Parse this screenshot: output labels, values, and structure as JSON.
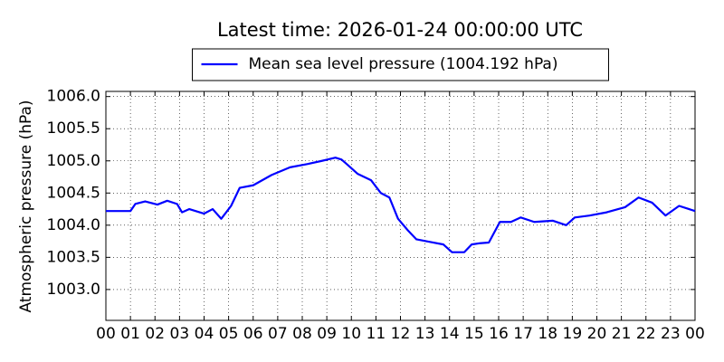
{
  "chart_data": {
    "type": "line",
    "title": "Latest time: 2026-01-24 00:00:00 UTC",
    "y_label": "Atmospheric pressure (hPa)",
    "legend": "upper center",
    "grid": true,
    "x": [
      0,
      1,
      1.2,
      1.6,
      2.1,
      2.5,
      2.9,
      3.1,
      3.4,
      4.0,
      4.35,
      4.7,
      5.1,
      5.45,
      6.0,
      6.75,
      7.5,
      8.2,
      8.8,
      9.35,
      9.6,
      9.9,
      10.25,
      10.8,
      11.2,
      11.55,
      11.9,
      12.3,
      12.65,
      13.2,
      13.75,
      14.1,
      14.6,
      14.9,
      15.25,
      15.6,
      16.05,
      16.5,
      16.9,
      17.45,
      18.2,
      18.75,
      19.1,
      19.7,
      20.4,
      21.15,
      21.7,
      22.25,
      22.8,
      23.35,
      24
    ],
    "series": [
      {
        "name": "Mean sea level pressure (1004.192 hPa)",
        "color": "#0000ff",
        "values": [
          1004.22,
          1004.22,
          1004.33,
          1004.37,
          1004.32,
          1004.38,
          1004.33,
          1004.2,
          1004.25,
          1004.18,
          1004.25,
          1004.1,
          1004.3,
          1004.58,
          1004.62,
          1004.78,
          1004.9,
          1004.95,
          1005.0,
          1005.05,
          1005.02,
          1004.92,
          1004.8,
          1004.7,
          1004.5,
          1004.43,
          1004.1,
          1003.92,
          1003.78,
          1003.74,
          1003.7,
          1003.58,
          1003.58,
          1003.7,
          1003.72,
          1003.73,
          1004.05,
          1004.05,
          1004.12,
          1004.05,
          1004.07,
          1004.0,
          1004.12,
          1004.15,
          1004.2,
          1004.28,
          1004.43,
          1004.35,
          1004.15,
          1004.3,
          1004.22
        ]
      }
    ],
    "xlim": [
      0,
      24
    ],
    "xticks": [
      {
        "value": 0,
        "label": "00"
      },
      {
        "value": 1,
        "label": "01"
      },
      {
        "value": 2,
        "label": "02"
      },
      {
        "value": 3,
        "label": "03"
      },
      {
        "value": 4,
        "label": "04"
      },
      {
        "value": 5,
        "label": "05"
      },
      {
        "value": 6,
        "label": "06"
      },
      {
        "value": 7,
        "label": "07"
      },
      {
        "value": 8,
        "label": "08"
      },
      {
        "value": 9,
        "label": "09"
      },
      {
        "value": 10,
        "label": "10"
      },
      {
        "value": 11,
        "label": "11"
      },
      {
        "value": 12,
        "label": "12"
      },
      {
        "value": 13,
        "label": "13"
      },
      {
        "value": 14,
        "label": "14"
      },
      {
        "value": 15,
        "label": "15"
      },
      {
        "value": 16,
        "label": "16"
      },
      {
        "value": 17,
        "label": "17"
      },
      {
        "value": 18,
        "label": "18"
      },
      {
        "value": 19,
        "label": "19"
      },
      {
        "value": 20,
        "label": "20"
      },
      {
        "value": 21,
        "label": "21"
      },
      {
        "value": 22,
        "label": "22"
      },
      {
        "value": 23,
        "label": "23"
      },
      {
        "value": 24,
        "label": "00"
      }
    ],
    "ylim": [
      1002.52,
      1006.08
    ],
    "yticks": [
      {
        "value": 1003,
        "label": "1003.0"
      },
      {
        "value": 1003.5,
        "label": "1003.5"
      },
      {
        "value": 1004,
        "label": "1004.0"
      },
      {
        "value": 1004.5,
        "label": "1004.5"
      },
      {
        "value": 1005,
        "label": "1005.0"
      },
      {
        "value": 1005.5,
        "label": "1005.5"
      },
      {
        "value": 1006,
        "label": "1006.0"
      }
    ]
  }
}
